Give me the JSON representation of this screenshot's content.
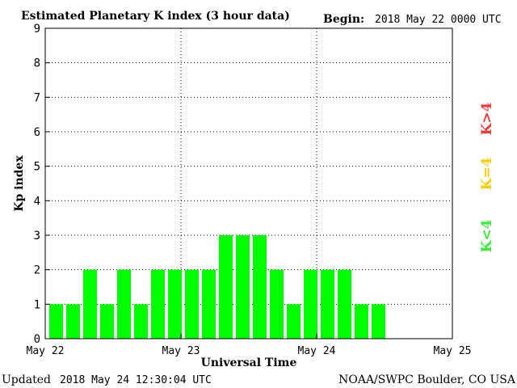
{
  "chart_data": {
    "type": "bar",
    "title": "Estimated Planetary K index (3 hour data)",
    "begin_label": "Begin:",
    "begin_value": "2018 May 22 0000 UTC",
    "xlabel": "Universal Time",
    "ylabel": "Kp index",
    "ylim": [
      0,
      9
    ],
    "yticks": [
      "0",
      "1",
      "2",
      "3",
      "4",
      "5",
      "6",
      "7",
      "8",
      "9"
    ],
    "xticks": [
      "May 22",
      "May 23",
      "May 24",
      "May 25"
    ],
    "values": [
      1,
      1,
      2,
      1,
      2,
      1,
      2,
      2,
      2,
      2,
      3,
      3,
      3,
      2,
      1,
      2,
      2,
      2,
      1,
      1
    ],
    "slots_total": 24,
    "grid": true,
    "legend": [
      {
        "label": "K<4",
        "color": "#33ee33"
      },
      {
        "label": "K=4",
        "color": "#ffcc00"
      },
      {
        "label": "K>4",
        "color": "#ff3333"
      }
    ],
    "bar_color": "#00ff00"
  },
  "footer": {
    "updated_label": "Updated",
    "updated_value": "2018 May 24 12:30:04 UTC",
    "source": "NOAA/SWPC Boulder, CO USA"
  }
}
